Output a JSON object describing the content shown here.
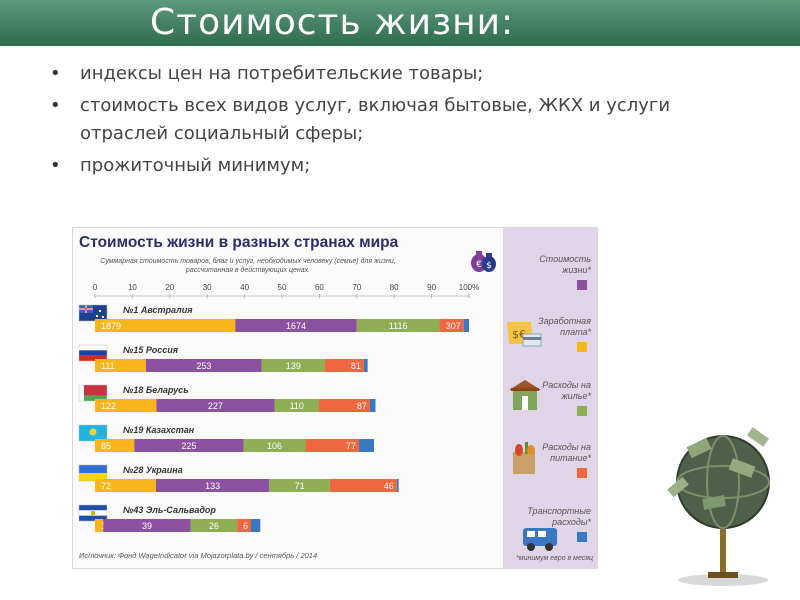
{
  "slide": {
    "title": "Стоимость жизни:",
    "bullets": [
      "индексы цен на потребительские товары;",
      "стоимость всех видов услуг, включая бытовые, ЖКХ и услуги отраслей социальный сферы;",
      "прожиточный минимум;"
    ]
  },
  "infographic": {
    "title": "Стоимость жизни в разных странах мира",
    "subtitle": "Суммарная стоимость товаров, благ и услуг, необходимых человеку (семье) для жизни, рассчитанная в действующих ценах.",
    "source": "Источник: Фонд WageIndicator via Mojazorplata.by / сентябрь / 2014",
    "footnote": "*минимум евро в месяц",
    "icons": {
      "money_bag": "money-bag-icon",
      "salary": "money-card-icon",
      "housing": "house-icon",
      "food": "grocery-bag-icon",
      "transport": "bus-icon"
    },
    "legend": [
      {
        "label": "Стоимость жизни*",
        "color": "#8c52a1"
      },
      {
        "label": "Заработная плата*",
        "color": "#f9b51c"
      },
      {
        "label": "Расходы на жилье*",
        "color": "#8fae54"
      },
      {
        "label": "Расходы на питание*",
        "color": "#f0663f"
      },
      {
        "label": "Транспортные расходы*",
        "color": "#3a78c2"
      }
    ]
  },
  "chart_data": {
    "type": "bar",
    "orientation": "horizontal",
    "stacked": true,
    "percent_scale": true,
    "xlim": [
      0,
      100
    ],
    "ticks": [
      "0",
      "10",
      "20",
      "30",
      "40",
      "50",
      "60",
      "70",
      "80",
      "90",
      "100%"
    ],
    "categories": [
      "№1 Австралия",
      "№15 Россия",
      "№18 Беларусь",
      "№19 Казахстан",
      "№28 Украина",
      "№43 Эль-Сальвадор"
    ],
    "flags": [
      "australia",
      "russia",
      "belarus",
      "kazakhstan",
      "ukraine",
      "el-salvador"
    ],
    "series": [
      {
        "name": "Заработная плата*",
        "color": "#f9b51c",
        "labels": [
          "1879",
          "111",
          "122",
          "85",
          "72",
          "10"
        ],
        "values": [
          37.5,
          13.6,
          16.4,
          10.5,
          16.3,
          2.2
        ]
      },
      {
        "name": "Стоимость жизни*",
        "color": "#8c52a1",
        "labels": [
          "1674",
          "253",
          "227",
          "225",
          "133",
          "39"
        ],
        "values": [
          32.5,
          31.0,
          31.6,
          29.2,
          30.3,
          23.4
        ]
      },
      {
        "name": "Расходы на жилье*",
        "color": "#8fae54",
        "labels": [
          "1116",
          "139",
          "110",
          "106",
          "71",
          "26"
        ],
        "values": [
          22.1,
          16.9,
          11.9,
          16.6,
          16.2,
          12.4
        ]
      },
      {
        "name": "Расходы на питание*",
        "color": "#f0663f",
        "labels": [
          "307",
          "81",
          "87",
          "77",
          "46",
          "6"
        ],
        "values": [
          6.5,
          10.4,
          13.6,
          14.3,
          17.9,
          3.7
        ]
      },
      {
        "name": "Транспортные расходы*",
        "color": "#3a78c2",
        "labels": [
          "",
          "",
          "",
          "",
          "",
          ""
        ],
        "values": [
          1.4,
          1.0,
          1.5,
          4.0,
          0.5,
          2.5
        ]
      }
    ]
  }
}
